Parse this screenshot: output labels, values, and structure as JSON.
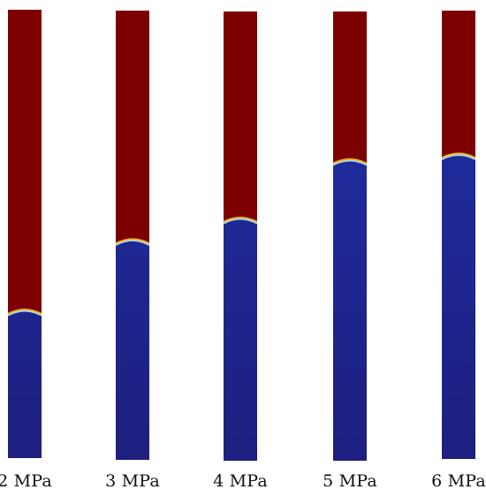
{
  "colors": {
    "upper_phase": "#7d0000",
    "lower_phase_top": "#2030a8",
    "lower_phase_bottom": "#1e1f7f",
    "interface_glow": "#9fe0ff"
  },
  "cases": [
    {
      "label": "2 MPa",
      "interface_fraction": 0.68
    },
    {
      "label": "3 MPa",
      "interface_fraction": 0.52
    },
    {
      "label": "4 MPa",
      "interface_fraction": 0.47
    },
    {
      "label": "5 MPa",
      "interface_fraction": 0.34
    },
    {
      "label": "6 MPa",
      "interface_fraction": 0.33
    }
  ]
}
